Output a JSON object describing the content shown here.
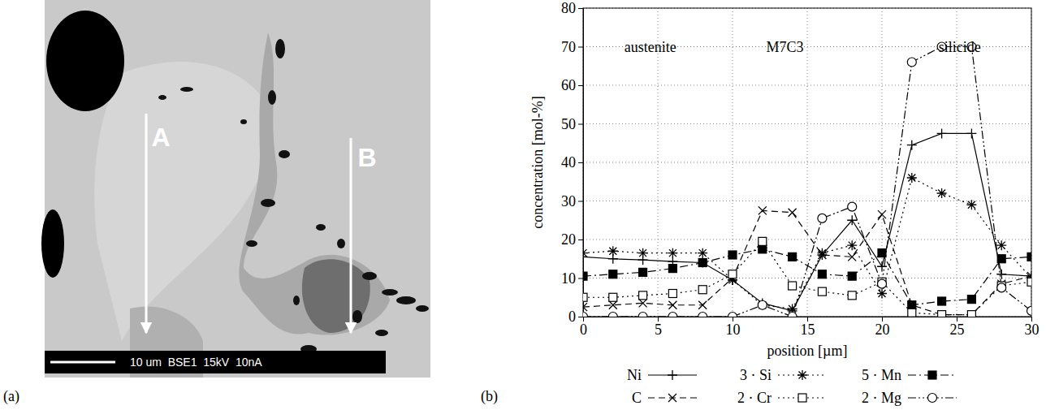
{
  "micrograph": {
    "panel_label": "(a)",
    "markers": [
      "A",
      "B"
    ],
    "scale_bar": "10 um  BSE1  15kV  10nA"
  },
  "chart_data": {
    "type": "line",
    "panel_label": "(b)",
    "x_label": "position [µm]",
    "y_label": "concentration [mol-%]",
    "x": [
      0,
      2,
      4,
      6,
      8,
      10,
      12,
      14,
      16,
      18,
      20,
      22,
      24,
      26,
      28,
      30
    ],
    "xlim": [
      0,
      30
    ],
    "xticks": [
      0,
      5,
      10,
      15,
      20,
      25,
      30
    ],
    "ylim": [
      0,
      80
    ],
    "yticks": [
      0,
      10,
      20,
      30,
      40,
      50,
      60,
      70,
      80
    ],
    "grid": true,
    "legend": "bottom",
    "annotations": [
      {
        "text": "austenite",
        "x": 4.5,
        "y": 70
      },
      {
        "text": "M7C3",
        "x": 13.5,
        "y": 70
      },
      {
        "text": "silicide",
        "x": 25.2,
        "y": 70
      }
    ],
    "series": [
      {
        "name": "Ni",
        "color": "#000000",
        "marker": "plus",
        "line_style": "solid",
        "values": [
          15.5,
          15,
          14.7,
          14.3,
          14,
          9.5,
          3.5,
          1.5,
          16,
          25,
          13,
          44.5,
          47.5,
          47.5,
          11,
          10.5
        ]
      },
      {
        "name": "3 · Si",
        "color": "#000000",
        "marker": "asterisk",
        "line_style": "dotted",
        "values": [
          16.5,
          17,
          16.5,
          16.5,
          16.5,
          9.5,
          3,
          2,
          16.5,
          18.5,
          6,
          36,
          32,
          29,
          18.5,
          10
        ]
      },
      {
        "name": "5 · Mn",
        "color": "#000000",
        "marker": "square-filled",
        "line_style": "dashdot",
        "values": [
          10.5,
          11,
          11.5,
          12.5,
          14,
          16,
          17.5,
          15.5,
          11,
          10.5,
          16.5,
          3,
          4,
          4.5,
          15,
          15.5
        ]
      },
      {
        "name": "C",
        "color": "#000000",
        "marker": "cross",
        "line_style": "dashed",
        "values": [
          2.5,
          3,
          3.5,
          3,
          3,
          10,
          27.5,
          27,
          16,
          15.5,
          26.5,
          3,
          0.5,
          0.5,
          8.5,
          10.5
        ]
      },
      {
        "name": "2 · Cr",
        "color": "#000000",
        "marker": "square-open",
        "line_style": "dotted",
        "values": [
          5,
          5,
          5.5,
          6,
          7,
          11,
          19.5,
          8,
          6.5,
          5.5,
          9,
          1,
          0.5,
          0.5,
          8,
          9
        ]
      },
      {
        "name": "2 · Mg",
        "color": "#000000",
        "marker": "circle-open",
        "line_style": "dashdotdot",
        "values": [
          0,
          0,
          0,
          0,
          0,
          0,
          3,
          0,
          25.5,
          28.5,
          8.5,
          66,
          70,
          70,
          7.5,
          1.5
        ]
      }
    ]
  }
}
